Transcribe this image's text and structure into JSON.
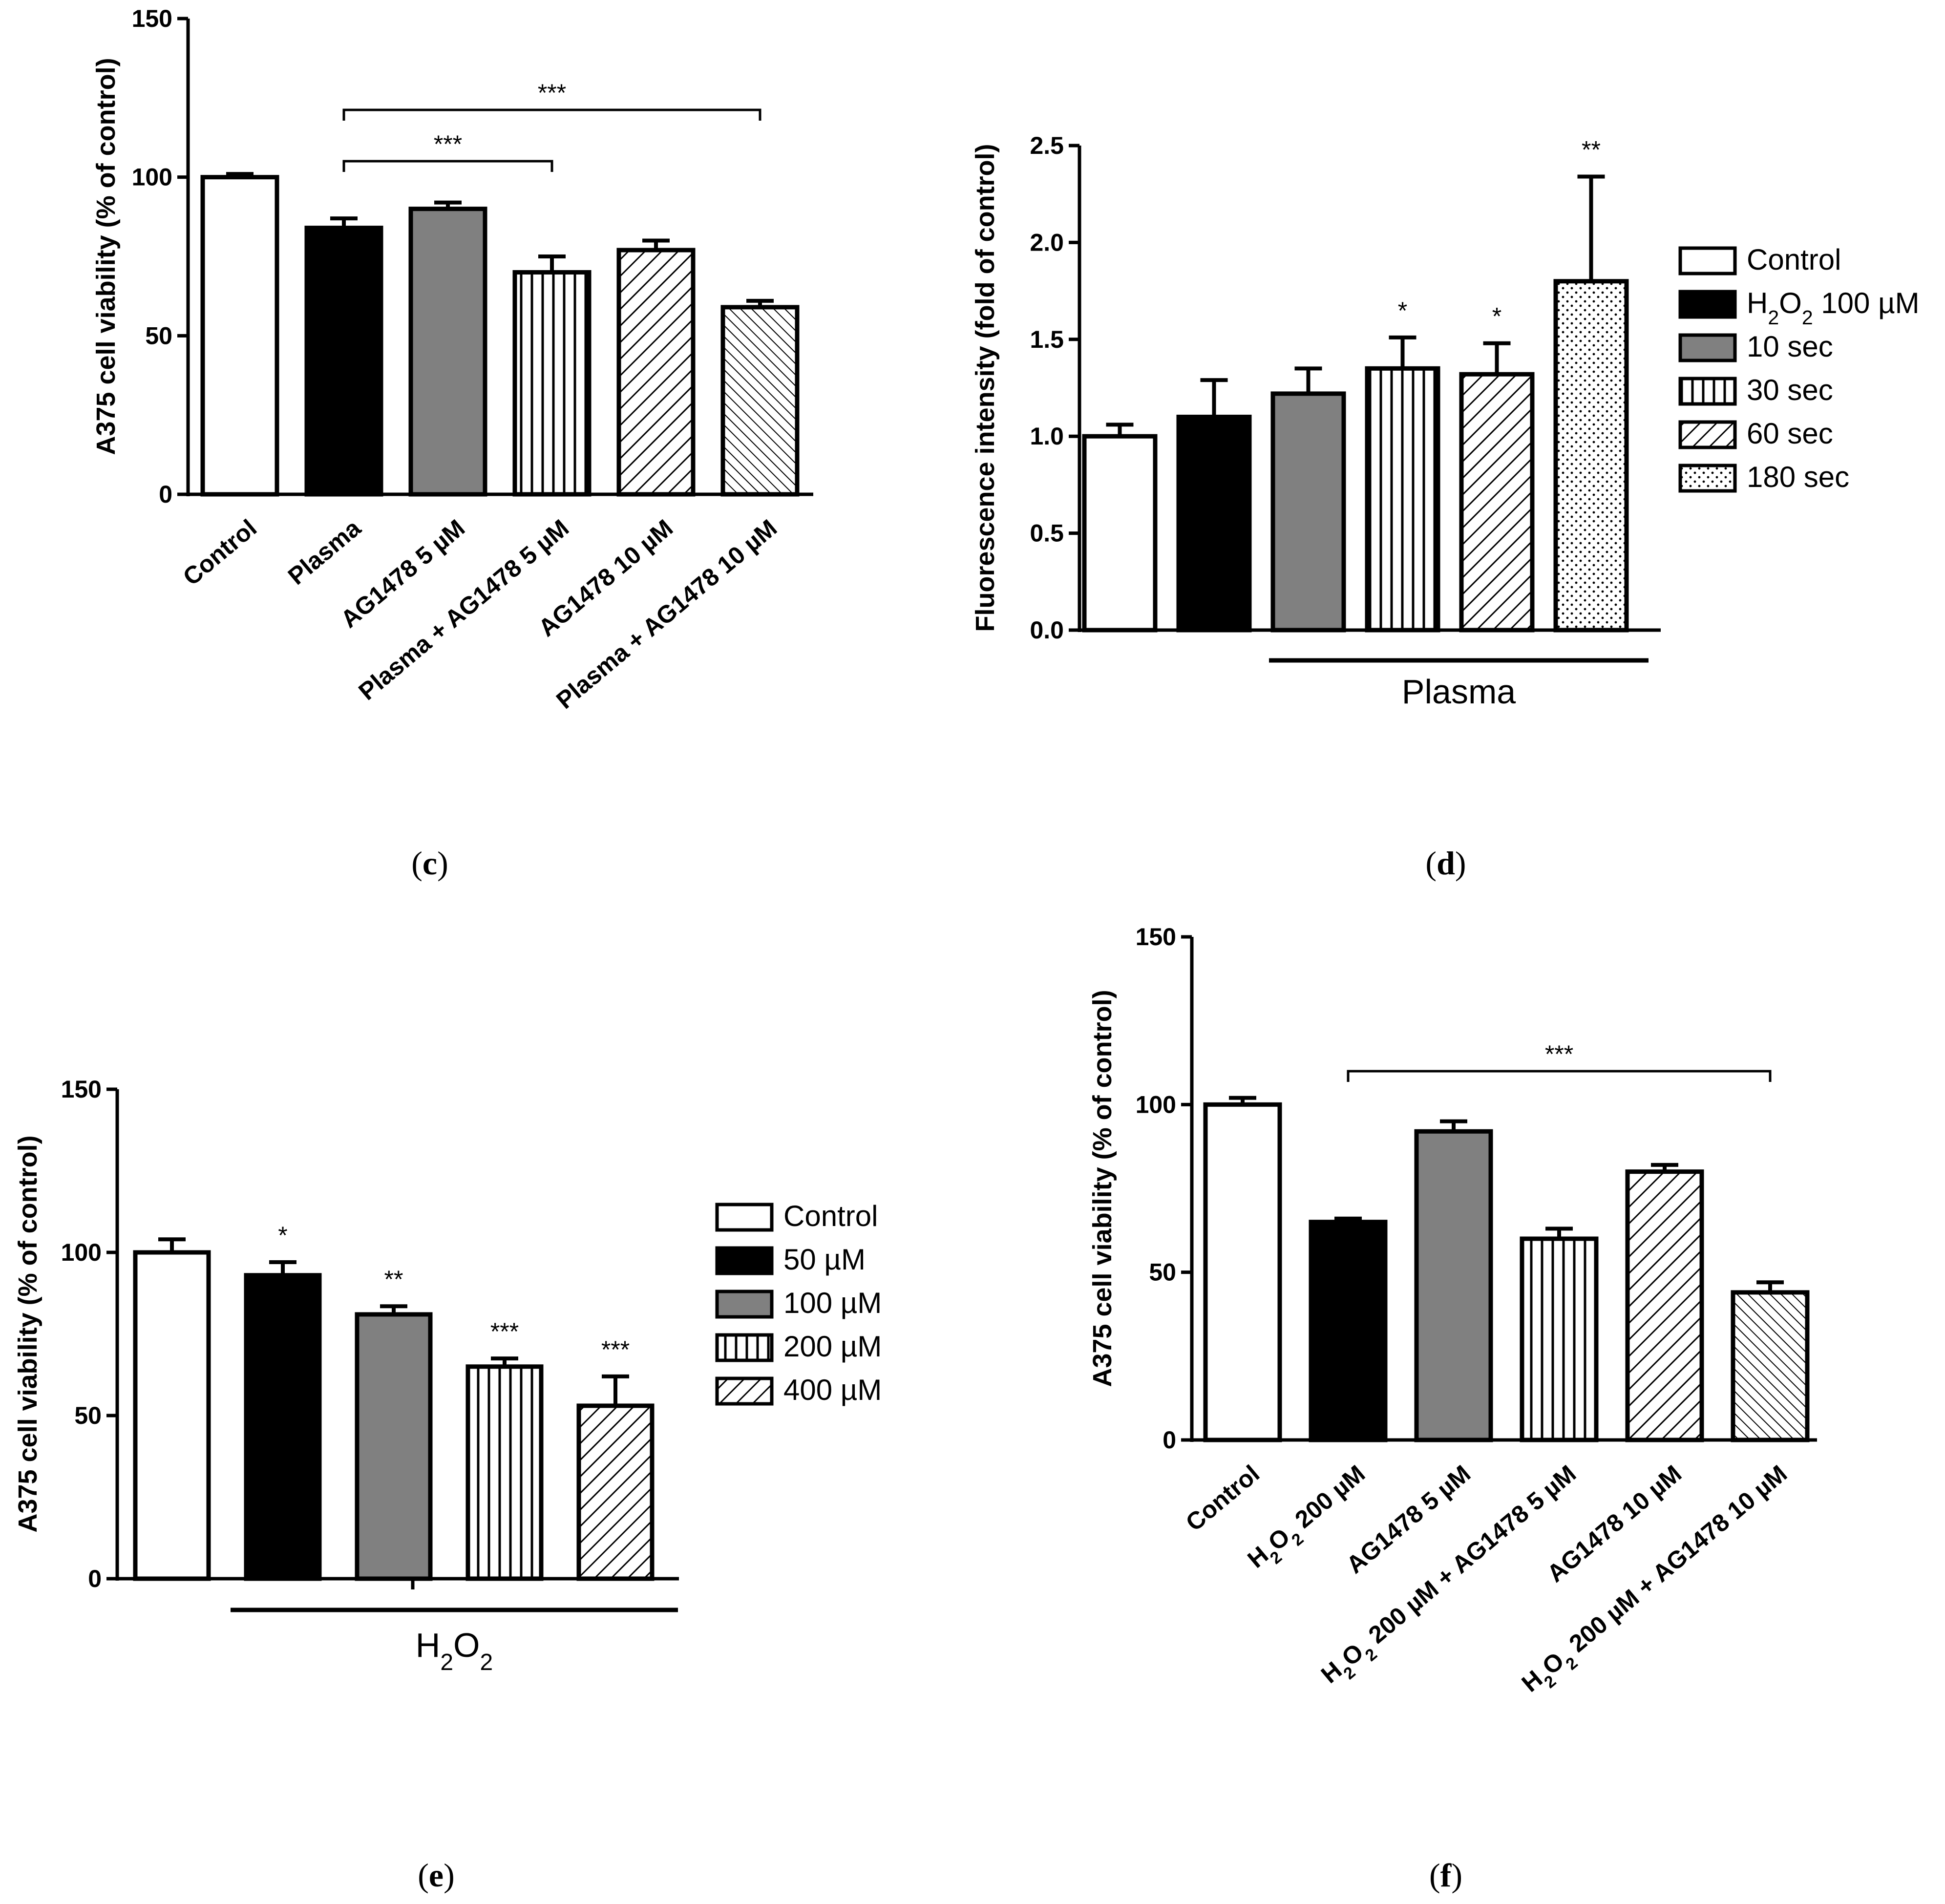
{
  "figure": {
    "panels": [
      "c",
      "d",
      "e",
      "f"
    ]
  },
  "chart_data": [
    {
      "panel": "c",
      "type": "bar",
      "ylabel": "A375 cell viability (% of control)",
      "ylim": [
        0,
        150
      ],
      "yticks": [
        0,
        50,
        100,
        150
      ],
      "categories": [
        "Control",
        "Plasma",
        "AG1478 5 µM",
        "Plasma + AG1478 5 µM",
        "AG1478 10 µM",
        "Plasma + AG1478 10 µM"
      ],
      "values": [
        100,
        84,
        90,
        70,
        77,
        59
      ],
      "errors": [
        1,
        3,
        2,
        5,
        3,
        2
      ],
      "fills": [
        "white",
        "black",
        "gray",
        "vlines",
        "diag",
        "diagdense"
      ],
      "significance_brackets": [
        {
          "from": 1,
          "to": 3,
          "label": "***"
        },
        {
          "from": 1,
          "to": 5,
          "label": "***"
        }
      ],
      "panel_label": "c"
    },
    {
      "panel": "d",
      "type": "bar",
      "ylabel": "Fluorescence intensity (fold of control)",
      "ylim": [
        0,
        2.5
      ],
      "yticks": [
        "0.0",
        "0.5",
        "1.0",
        "1.5",
        "2.0",
        "2.5"
      ],
      "categories": [
        "Control",
        "H2O2 100 µM",
        "10 sec",
        "30 sec",
        "60 sec",
        "180 sec"
      ],
      "values": [
        1.0,
        1.1,
        1.22,
        1.35,
        1.32,
        1.8
      ],
      "errors": [
        0.06,
        0.19,
        0.13,
        0.16,
        0.16,
        0.54
      ],
      "fills": [
        "white",
        "black",
        "gray",
        "vlines",
        "diag",
        "dots"
      ],
      "annotations": [
        "",
        "",
        "",
        "*",
        "*",
        "**"
      ],
      "group_label": "Plasma",
      "group_span": [
        2,
        5
      ],
      "legend": [
        {
          "label": "Control",
          "fill": "white"
        },
        {
          "label": "H2O2 100 µM",
          "fill": "black",
          "rich": [
            "H",
            "2",
            "O",
            "2",
            " 100 µM"
          ]
        },
        {
          "label": "10 sec",
          "fill": "gray"
        },
        {
          "label": "30 sec",
          "fill": "vlines"
        },
        {
          "label": "60 sec",
          "fill": "diag"
        },
        {
          "label": "180 sec",
          "fill": "dots"
        }
      ],
      "panel_label": "d"
    },
    {
      "panel": "e",
      "type": "bar",
      "ylabel": "A375 cell viability  (% of control)",
      "ylim": [
        0,
        150
      ],
      "yticks": [
        0,
        50,
        100,
        150
      ],
      "categories": [
        "Control",
        "50 µM",
        "100 µM",
        "200 µM",
        "400 µM"
      ],
      "values": [
        100,
        93,
        81,
        65,
        53
      ],
      "errors": [
        4,
        4,
        2.5,
        2.5,
        9
      ],
      "fills": [
        "white",
        "black",
        "gray",
        "vlines",
        "diag"
      ],
      "annotations": [
        "",
        "*",
        "**",
        "***",
        "***"
      ],
      "group_label": "H2O2",
      "group_span": [
        1,
        4
      ],
      "legend": [
        {
          "label": "Control",
          "fill": "white"
        },
        {
          "label": "50 µM",
          "fill": "black"
        },
        {
          "label": "100 µM",
          "fill": "gray"
        },
        {
          "label": "200 µM",
          "fill": "vlines"
        },
        {
          "label": "400 µM",
          "fill": "diag"
        }
      ],
      "panel_label": "e"
    },
    {
      "panel": "f",
      "type": "bar",
      "ylabel": "A375 cell viability (% of control)",
      "ylim": [
        0,
        150
      ],
      "yticks": [
        0,
        50,
        100,
        150
      ],
      "categories": [
        "Control",
        "H2O2 200 µM",
        "AG1478 5 µM",
        "H2O2 200 µM + AG1478 5 µM",
        "AG1478 10 µM",
        "H2O2 200 µM + AG1478 10 µM"
      ],
      "values": [
        100,
        65,
        92,
        60,
        80,
        44
      ],
      "errors": [
        2,
        1,
        3,
        3,
        2,
        3
      ],
      "fills": [
        "white",
        "black",
        "gray",
        "vlines",
        "diag",
        "diagdense"
      ],
      "significance_brackets": [
        {
          "from": 1,
          "to": 5,
          "label": "***"
        }
      ],
      "panel_label": "f"
    }
  ]
}
